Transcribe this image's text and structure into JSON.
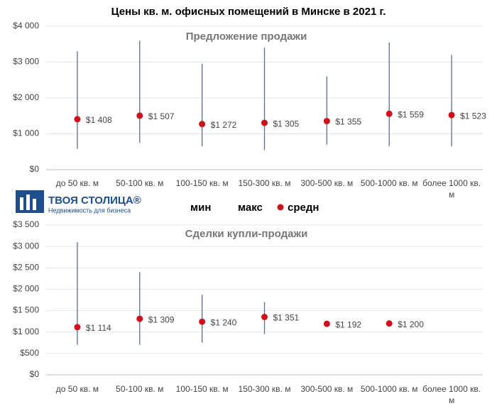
{
  "title": "Цены кв. м. офисных помещений в Минске в 2021 г.",
  "logo": {
    "name": "ТВОЯ СТОЛИЦА®",
    "tagline": "Недвижимость для бизнеса"
  },
  "chart_data": [
    {
      "type": "range",
      "title": "Предложение продажи",
      "categories": [
        "до 50 кв. м",
        "50-100 кв. м",
        "100-150 кв. м",
        "150-300 кв. м",
        "300-500 кв. м",
        "500-1000 кв. м",
        "более 1000 кв. м"
      ],
      "ylim": [
        0,
        4000
      ],
      "yticks": [
        {
          "value": 0,
          "label": "$0"
        },
        {
          "value": 1000,
          "label": "$1 000"
        },
        {
          "value": 2000,
          "label": "$2 000"
        },
        {
          "value": 3000,
          "label": "$3 000"
        },
        {
          "value": 4000,
          "label": "$4 000"
        }
      ],
      "grid": true,
      "range_color": "#5a6f8c",
      "series": [
        {
          "name": "мин",
          "values": [
            580,
            750,
            650,
            550,
            700,
            650,
            650
          ]
        },
        {
          "name": "макс",
          "values": [
            3300,
            3600,
            2950,
            3400,
            2600,
            3550,
            3200
          ]
        },
        {
          "name": "средн",
          "color": "#d0101a",
          "values": [
            1408,
            1507,
            1272,
            1305,
            1355,
            1559,
            1523
          ],
          "value_labels": [
            "$1 408",
            "$1 507",
            "$1 272",
            "$1 305",
            "$1 355",
            "$1 559",
            "$1 523"
          ]
        }
      ]
    },
    {
      "type": "range",
      "title": "Сделки купли-продажи",
      "categories": [
        "до 50 кв. м",
        "50-100 кв. м",
        "100-150 кв. м",
        "150-300 кв. м",
        "300-500 кв. м",
        "500-1000 кв. м",
        "более 1000 кв. м"
      ],
      "ylim": [
        0,
        3500
      ],
      "yticks": [
        {
          "value": 0,
          "label": "$0"
        },
        {
          "value": 500,
          "label": "$500"
        },
        {
          "value": 1000,
          "label": "$1 000"
        },
        {
          "value": 1500,
          "label": "$1 500"
        },
        {
          "value": 2000,
          "label": "$2 000"
        },
        {
          "value": 2500,
          "label": "$2 500"
        },
        {
          "value": 3000,
          "label": "$3 000"
        },
        {
          "value": 3500,
          "label": "$3 500"
        }
      ],
      "grid": true,
      "range_color": "#5a6f8c",
      "series": [
        {
          "name": "мин",
          "values": [
            700,
            700,
            750,
            950,
            null,
            null,
            null
          ]
        },
        {
          "name": "макс",
          "values": [
            3100,
            2400,
            1870,
            1700,
            null,
            null,
            null
          ]
        },
        {
          "name": "средн",
          "color": "#d0101a",
          "values": [
            1114,
            1309,
            1240,
            1351,
            1192,
            1200,
            null
          ],
          "value_labels": [
            "$1 114",
            "$1 309",
            "$1 240",
            "$1 351",
            "$1 192",
            "$1 200",
            null
          ]
        }
      ]
    }
  ]
}
